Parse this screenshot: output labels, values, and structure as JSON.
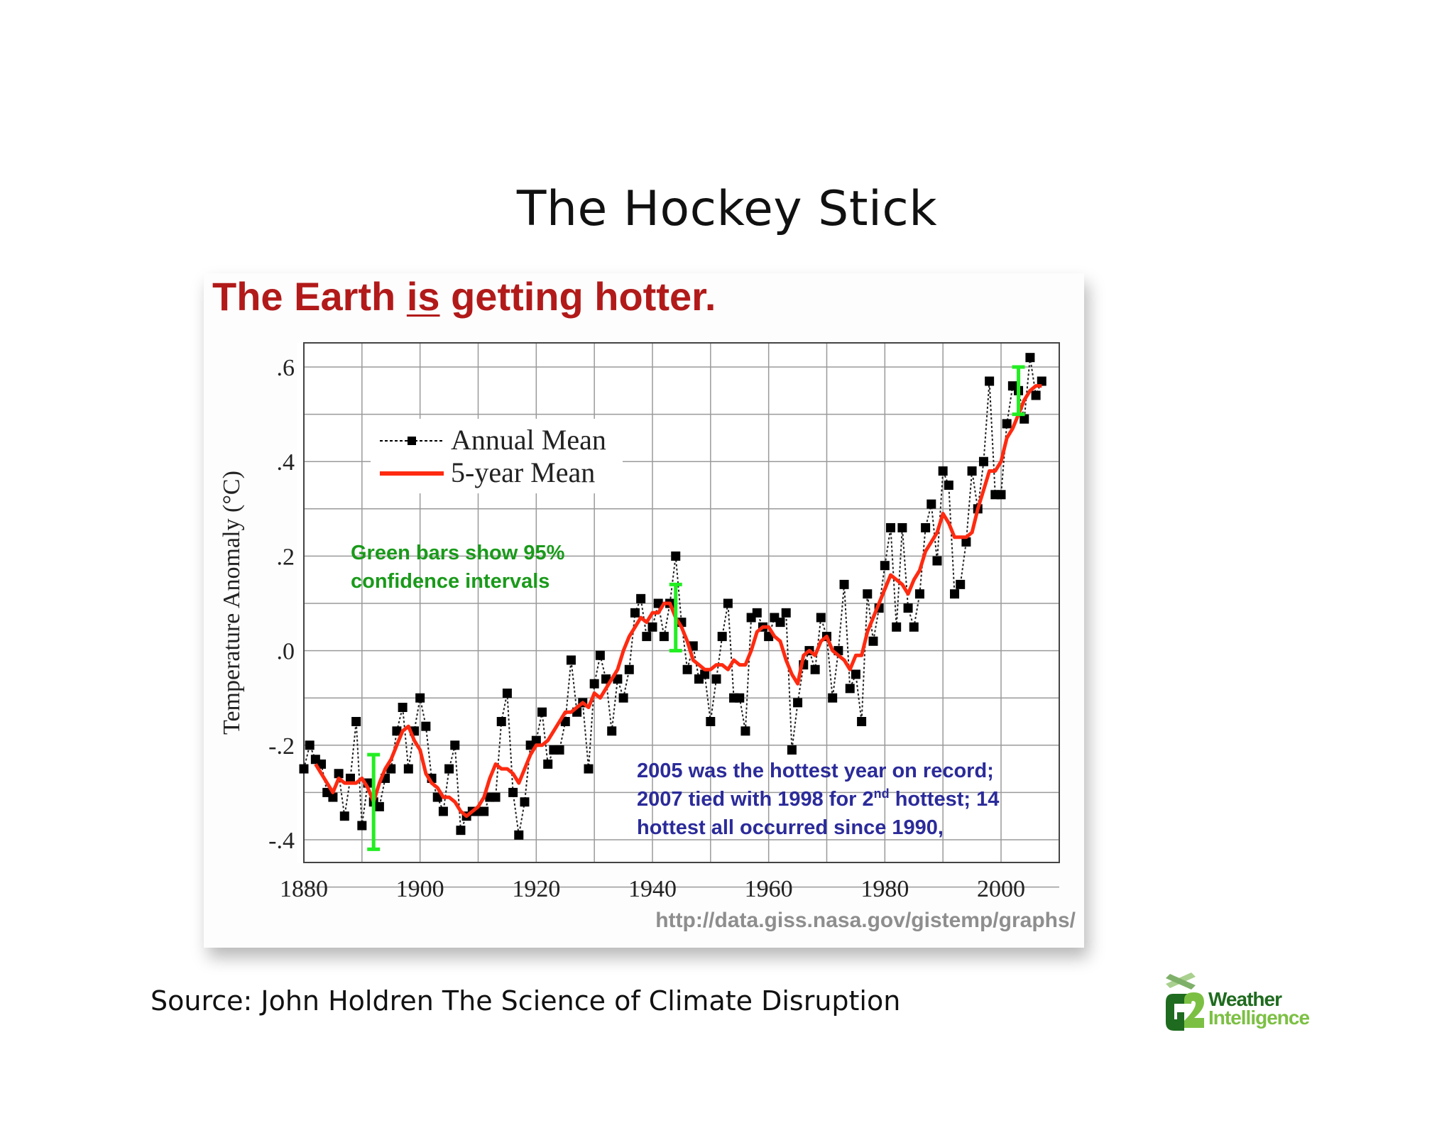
{
  "slide": {
    "title": "The Hockey Stick",
    "source": "Source:  John Holdren The Science of Climate Disruption"
  },
  "figure": {
    "headline_pre": "The Earth ",
    "headline_em": "is",
    "headline_post": " getting hotter.",
    "url": "http://data.giss.nasa.gov/gistemp/graphs/",
    "annotation_green": [
      "Green bars show 95%",
      "confidence intervals"
    ],
    "annotation_blue": [
      "2005 was the hottest year on record;",
      "2007 tied with 1998 for 2",
      "nd",
      " hottest; 14",
      "hottest all occurred since 1990,"
    ]
  },
  "logo": {
    "line1": "Weather",
    "line2": "Intelligence",
    "mark": "G2"
  },
  "colors": {
    "headline": "#b21a1a",
    "five_year": "#ff2a10",
    "annual": "#000000",
    "ci_bar": "#22ee22",
    "green_text": "#1a9a1a",
    "blue_text": "#2b2b9a",
    "grid": "#9a9a9a",
    "url": "#8e8e8e"
  },
  "chart_data": {
    "type": "line",
    "title": "The Earth is getting hotter.",
    "xlabel": "",
    "ylabel": "Temperature Anomaly (°C)",
    "xlim": [
      1880,
      2008
    ],
    "ylim": [
      -0.45,
      0.65
    ],
    "xticks": [
      1880,
      1900,
      1920,
      1940,
      1960,
      1980,
      2000
    ],
    "xtick_labels": [
      "1880",
      "1900",
      "1920",
      "1940",
      "1960",
      "1980",
      "2000"
    ],
    "yticks": [
      0.6,
      0.4,
      0.2,
      0.0,
      -0.2,
      -0.4
    ],
    "ytick_labels": [
      ".6",
      ".4",
      ".2",
      ".0",
      "-.2",
      "-.4"
    ],
    "grid": true,
    "legend": [
      "Annual Mean",
      "5-year Mean"
    ],
    "legend_position": "upper left",
    "x": [
      1880,
      1881,
      1882,
      1883,
      1884,
      1885,
      1886,
      1887,
      1888,
      1889,
      1890,
      1891,
      1892,
      1893,
      1894,
      1895,
      1896,
      1897,
      1898,
      1899,
      1900,
      1901,
      1902,
      1903,
      1904,
      1905,
      1906,
      1907,
      1908,
      1909,
      1910,
      1911,
      1912,
      1913,
      1914,
      1915,
      1916,
      1917,
      1918,
      1919,
      1920,
      1921,
      1922,
      1923,
      1924,
      1925,
      1926,
      1927,
      1928,
      1929,
      1930,
      1931,
      1932,
      1933,
      1934,
      1935,
      1936,
      1937,
      1938,
      1939,
      1940,
      1941,
      1942,
      1943,
      1944,
      1945,
      1946,
      1947,
      1948,
      1949,
      1950,
      1951,
      1952,
      1953,
      1954,
      1955,
      1956,
      1957,
      1958,
      1959,
      1960,
      1961,
      1962,
      1963,
      1964,
      1965,
      1966,
      1967,
      1968,
      1969,
      1970,
      1971,
      1972,
      1973,
      1974,
      1975,
      1976,
      1977,
      1978,
      1979,
      1980,
      1981,
      1982,
      1983,
      1984,
      1985,
      1986,
      1987,
      1988,
      1989,
      1990,
      1991,
      1992,
      1993,
      1994,
      1995,
      1996,
      1997,
      1998,
      1999,
      2000,
      2001,
      2002,
      2003,
      2004,
      2005,
      2006,
      2007
    ],
    "series": [
      {
        "name": "Annual Mean",
        "values": [
          -0.25,
          -0.2,
          -0.23,
          -0.24,
          -0.3,
          -0.31,
          -0.26,
          -0.35,
          -0.27,
          -0.15,
          -0.37,
          -0.28,
          -0.32,
          -0.33,
          -0.27,
          -0.25,
          -0.17,
          -0.12,
          -0.25,
          -0.17,
          -0.1,
          -0.16,
          -0.27,
          -0.31,
          -0.34,
          -0.25,
          -0.2,
          -0.38,
          -0.35,
          -0.34,
          -0.34,
          -0.34,
          -0.31,
          -0.31,
          -0.15,
          -0.09,
          -0.3,
          -0.39,
          -0.32,
          -0.2,
          -0.19,
          -0.13,
          -0.24,
          -0.21,
          -0.21,
          -0.15,
          -0.02,
          -0.13,
          -0.11,
          -0.25,
          -0.07,
          -0.01,
          -0.06,
          -0.17,
          -0.06,
          -0.1,
          -0.04,
          0.08,
          0.11,
          0.03,
          0.05,
          0.1,
          0.03,
          0.1,
          0.2,
          0.06,
          -0.04,
          0.01,
          -0.06,
          -0.05,
          -0.15,
          -0.06,
          0.03,
          0.1,
          -0.1,
          -0.1,
          -0.17,
          0.07,
          0.08,
          0.05,
          0.03,
          0.07,
          0.06,
          0.08,
          -0.21,
          -0.11,
          -0.03,
          0.0,
          -0.04,
          0.07,
          0.03,
          -0.1,
          0.0,
          0.14,
          -0.08,
          -0.05,
          -0.15,
          0.12,
          0.02,
          0.09,
          0.18,
          0.26,
          0.05,
          0.26,
          0.09,
          0.05,
          0.12,
          0.26,
          0.31,
          0.19,
          0.38,
          0.35,
          0.12,
          0.14,
          0.23,
          0.38,
          0.3,
          0.4,
          0.57,
          0.33,
          0.33,
          0.48,
          0.56,
          0.55,
          0.49,
          0.62,
          0.54,
          0.57
        ]
      },
      {
        "name": "5-year Mean",
        "values": [
          null,
          null,
          -0.24,
          -0.26,
          -0.28,
          -0.3,
          -0.27,
          -0.28,
          -0.28,
          -0.28,
          -0.27,
          -0.29,
          -0.32,
          -0.28,
          -0.25,
          -0.23,
          -0.2,
          -0.17,
          -0.16,
          -0.19,
          -0.21,
          -0.26,
          -0.28,
          -0.29,
          -0.31,
          -0.31,
          -0.32,
          -0.34,
          -0.35,
          -0.34,
          -0.33,
          -0.31,
          -0.27,
          -0.24,
          -0.25,
          -0.25,
          -0.26,
          -0.28,
          -0.25,
          -0.22,
          -0.2,
          -0.2,
          -0.19,
          -0.17,
          -0.15,
          -0.13,
          -0.13,
          -0.12,
          -0.11,
          -0.12,
          -0.09,
          -0.1,
          -0.08,
          -0.06,
          -0.04,
          0.0,
          0.03,
          0.05,
          0.07,
          0.06,
          0.08,
          0.08,
          0.1,
          0.1,
          0.07,
          0.05,
          0.02,
          -0.02,
          -0.03,
          -0.04,
          -0.04,
          -0.03,
          -0.03,
          -0.04,
          -0.02,
          -0.03,
          -0.03,
          0.0,
          0.04,
          0.05,
          0.05,
          0.03,
          0.02,
          -0.02,
          -0.05,
          -0.07,
          -0.01,
          0.0,
          -0.01,
          0.02,
          0.03,
          0.0,
          -0.01,
          -0.02,
          -0.04,
          -0.01,
          -0.01,
          0.04,
          0.07,
          0.1,
          0.13,
          0.16,
          0.15,
          0.14,
          0.12,
          0.15,
          0.17,
          0.21,
          0.23,
          0.25,
          0.29,
          0.27,
          0.24,
          0.24,
          0.24,
          0.25,
          0.3,
          0.34,
          0.38,
          0.38,
          0.4,
          0.45,
          0.47,
          0.5,
          0.53,
          0.55,
          0.56,
          0.56
        ]
      }
    ],
    "confidence_intervals": [
      {
        "x": 1892,
        "low": -0.42,
        "high": -0.22
      },
      {
        "x": 1944,
        "low": 0.0,
        "high": 0.14
      },
      {
        "x": 2003,
        "low": 0.5,
        "high": 0.6
      }
    ],
    "annotations": [
      "Green bars show 95% confidence intervals",
      "2005 was the hottest year on record; 2007 tied with 1998 for 2nd hottest; 14 hottest all occurred since 1990,"
    ],
    "source_url": "http://data.giss.nasa.gov/gistemp/graphs/"
  }
}
